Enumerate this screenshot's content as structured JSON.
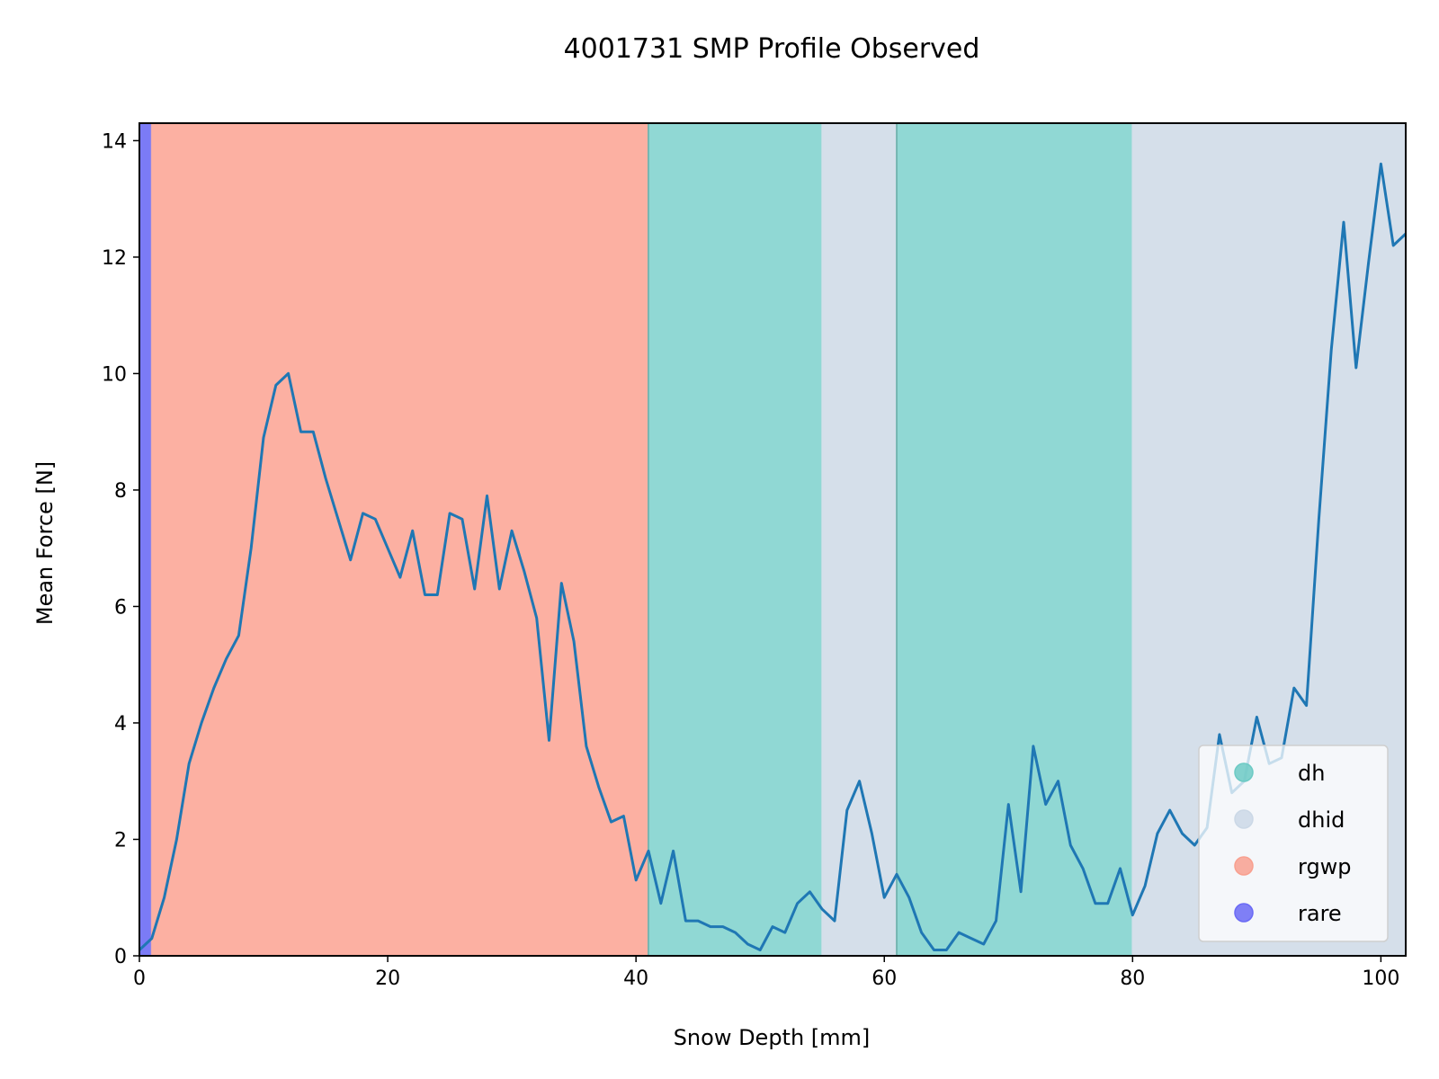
{
  "chart_data": {
    "type": "line",
    "title": "4001731 SMP Profile Observed",
    "xlabel": "Snow Depth [mm]",
    "ylabel": "Mean Force [N]",
    "xlim": [
      0,
      102
    ],
    "ylim": [
      0,
      14.3
    ],
    "x_ticks": [
      0,
      20,
      40,
      60,
      80,
      100
    ],
    "y_ticks": [
      0,
      2,
      4,
      6,
      8,
      10,
      12,
      14
    ],
    "grid": false,
    "legend_position": "lower-right",
    "series": [
      {
        "color": "#1f77b4",
        "x": [
          0,
          1,
          2,
          3,
          4,
          5,
          6,
          7,
          8,
          9,
          10,
          11,
          12,
          13,
          14,
          15,
          16,
          17,
          18,
          19,
          20,
          21,
          22,
          23,
          24,
          25,
          26,
          27,
          28,
          29,
          30,
          31,
          32,
          33,
          34,
          35,
          36,
          37,
          38,
          39,
          40,
          41,
          42,
          43,
          44,
          45,
          46,
          47,
          48,
          49,
          50,
          51,
          52,
          53,
          54,
          55,
          56,
          57,
          58,
          59,
          60,
          61,
          62,
          63,
          64,
          65,
          66,
          67,
          68,
          69,
          70,
          71,
          72,
          73,
          74,
          75,
          76,
          77,
          78,
          79,
          80,
          81,
          82,
          83,
          84,
          85,
          86,
          87,
          88,
          89,
          90,
          91,
          92,
          93,
          94,
          95,
          96,
          97,
          98,
          99,
          100,
          101,
          102
        ],
        "y": [
          0.1,
          0.3,
          1.0,
          2.0,
          3.3,
          4.0,
          4.6,
          5.1,
          5.5,
          7.0,
          8.9,
          9.8,
          10.0,
          9.0,
          9.0,
          8.2,
          7.5,
          6.8,
          7.6,
          7.5,
          7.0,
          6.5,
          7.3,
          6.2,
          6.2,
          7.6,
          7.5,
          6.3,
          7.9,
          6.3,
          7.3,
          6.6,
          5.8,
          3.7,
          6.4,
          5.4,
          3.6,
          2.9,
          2.3,
          2.4,
          1.3,
          1.8,
          0.9,
          1.8,
          0.6,
          0.6,
          0.5,
          0.5,
          0.4,
          0.2,
          0.1,
          0.5,
          0.4,
          0.9,
          1.1,
          0.8,
          0.6,
          2.5,
          3.0,
          2.1,
          1.0,
          1.4,
          1.0,
          0.4,
          0.1,
          0.1,
          0.4,
          0.3,
          0.2,
          0.6,
          2.6,
          1.1,
          3.6,
          2.6,
          3.0,
          1.9,
          1.5,
          0.9,
          0.9,
          1.5,
          0.7,
          1.2,
          2.1,
          2.5,
          2.1,
          1.9,
          2.2,
          3.8,
          2.8,
          3.0,
          4.1,
          3.3,
          3.4,
          4.6,
          4.3,
          7.5,
          10.4,
          12.6,
          10.1,
          11.9,
          13.6,
          12.2,
          12.4
        ]
      }
    ],
    "regions": [
      {
        "label": "rare",
        "start": 0,
        "end": 1,
        "color": "#7b7bf6"
      },
      {
        "label": "rgwp",
        "start": 1,
        "end": 41,
        "color": "#fcb0a2"
      },
      {
        "label": "dh",
        "start": 41,
        "end": 55,
        "color": "#90d8d4"
      },
      {
        "label": "dhid",
        "start": 55,
        "end": 61,
        "color": "#d5dfea"
      },
      {
        "label": "dh",
        "start": 61,
        "end": 80,
        "color": "#90d8d4"
      },
      {
        "label": "dhid",
        "start": 80,
        "end": 102,
        "color": "#d5dfea"
      }
    ],
    "legend": [
      {
        "label": "dh",
        "color": "#6ccac4"
      },
      {
        "label": "dhid",
        "color": "#cbd8e6"
      },
      {
        "label": "rgwp",
        "color": "#f8a08f"
      },
      {
        "label": "rare",
        "color": "#6a6af5"
      }
    ]
  }
}
